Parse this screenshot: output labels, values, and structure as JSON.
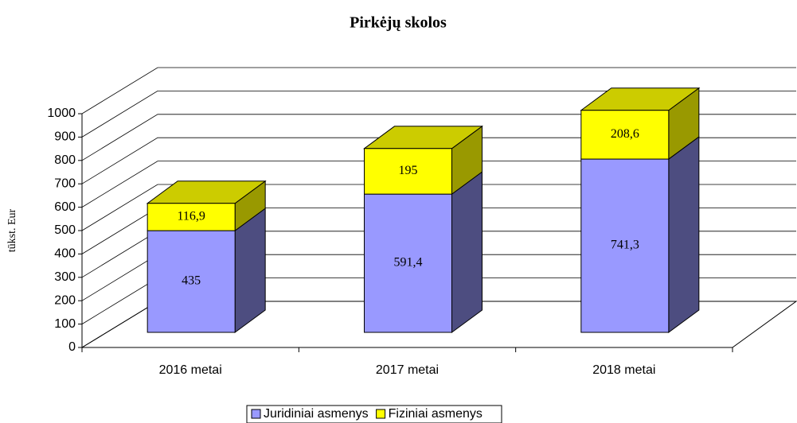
{
  "chart_data": {
    "type": "bar3d_stacked",
    "title": "Pirkėjų skolos",
    "ylabel": "tūkst. Eur",
    "categories": [
      "2016 metai",
      "2017 metai",
      "2018 metai"
    ],
    "series": [
      {
        "name": "Juridiniai asmenys",
        "color": "#9999ff",
        "side_color": "#4d4d80",
        "top_color": "#7878cc",
        "values": [
          435,
          591.4,
          741.3
        ],
        "value_labels": [
          "435",
          "591,4",
          "741,3"
        ]
      },
      {
        "name": "Fiziniai asmenys",
        "color": "#ffff00",
        "side_color": "#999900",
        "top_color": "#cccc00",
        "values": [
          116.9,
          195,
          208.6
        ],
        "value_labels": [
          "116,9",
          "195",
          "208,6"
        ]
      }
    ],
    "ylim": [
      0,
      1000
    ],
    "yticks": [
      0,
      100,
      200,
      300,
      400,
      500,
      600,
      700,
      800,
      900,
      1000
    ],
    "grid": true,
    "legend": "bottom"
  }
}
